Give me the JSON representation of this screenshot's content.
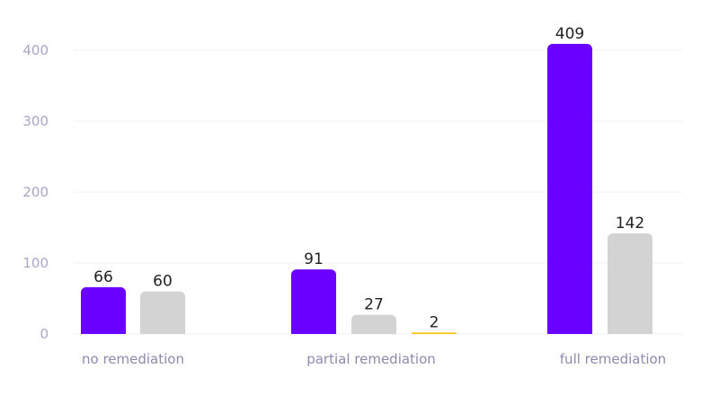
{
  "chart_data": {
    "type": "bar",
    "categories": [
      "no remediation",
      "partial remediation",
      "full remediation"
    ],
    "series": [
      {
        "color": "#6a00ff",
        "values": [
          66,
          91,
          409
        ]
      },
      {
        "color": "#d3d3d3",
        "values": [
          60,
          27,
          142
        ]
      },
      {
        "color": "#ffc107",
        "values": [
          null,
          2,
          null
        ]
      }
    ],
    "data_labels": [
      [
        "66",
        "91",
        "409"
      ],
      [
        "60",
        "27",
        "142"
      ],
      [
        null,
        "2",
        null
      ]
    ],
    "ylim": [
      0,
      440
    ],
    "yticks": [
      0,
      100,
      200,
      300,
      400
    ],
    "ytick_labels": [
      "0",
      "100",
      "200",
      "300",
      "400"
    ],
    "grid": true,
    "title": "",
    "xlabel": "",
    "ylabel": ""
  }
}
